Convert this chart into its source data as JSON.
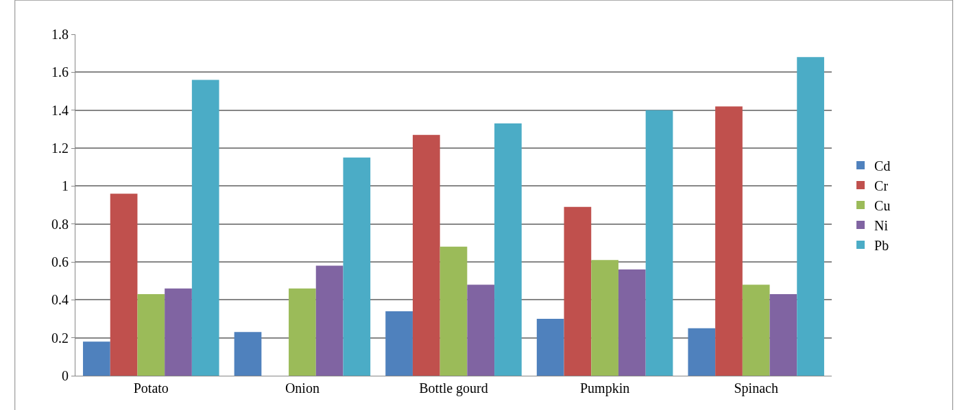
{
  "chart_data": {
    "type": "bar",
    "categories": [
      "Potato",
      "Onion",
      "Bottle gourd",
      "Pumpkin",
      "Spinach"
    ],
    "series": [
      {
        "name": "Cd",
        "color": "#4f81bd",
        "values": [
          0.18,
          0.23,
          0.34,
          0.3,
          0.25
        ]
      },
      {
        "name": "Cr",
        "color": "#c0504d",
        "values": [
          0.96,
          0.0,
          1.27,
          0.89,
          1.42
        ]
      },
      {
        "name": "Cu",
        "color": "#9bbb59",
        "values": [
          0.43,
          0.46,
          0.68,
          0.61,
          0.48
        ]
      },
      {
        "name": "Ni",
        "color": "#8064a2",
        "values": [
          0.46,
          0.58,
          0.48,
          0.56,
          0.43
        ]
      },
      {
        "name": "Pb",
        "color": "#4bacc6",
        "values": [
          1.56,
          1.15,
          1.33,
          1.4,
          1.68
        ]
      }
    ],
    "ylim": [
      0,
      1.8
    ],
    "yticks": [
      0,
      0.2,
      0.4,
      0.6,
      0.8,
      1,
      1.2,
      1.4,
      1.6,
      1.8
    ],
    "grid": "y",
    "legend": "right"
  }
}
